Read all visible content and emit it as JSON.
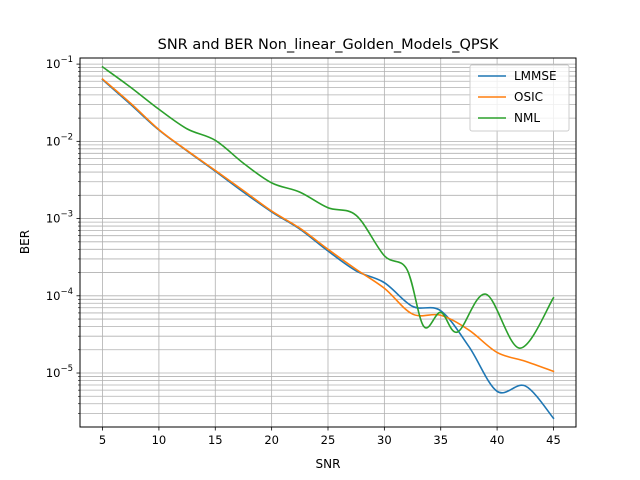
{
  "chart_data": {
    "type": "line",
    "title": "SNR and BER Non_linear_Golden_Models_QPSK",
    "xlabel": "SNR",
    "ylabel": "BER",
    "xlim": [
      3,
      47
    ],
    "ylim": [
      2e-06,
      0.12
    ],
    "yscale": "log",
    "grid": "both-major-minor",
    "legend_position": "top-right",
    "xticks": [
      5,
      10,
      15,
      20,
      25,
      30,
      35,
      40,
      45
    ],
    "yticks": [
      {
        "value": 1e-05,
        "base": "10",
        "exp": "−5"
      },
      {
        "value": 0.0001,
        "base": "10",
        "exp": "−4"
      },
      {
        "value": 0.001,
        "base": "10",
        "exp": "−3"
      },
      {
        "value": 0.01,
        "base": "10",
        "exp": "−2"
      },
      {
        "value": 0.1,
        "base": "10",
        "exp": "−1"
      }
    ],
    "series": [
      {
        "name": "LMMSE",
        "color": "#1f77b4",
        "x": [
          5,
          7.5,
          10,
          12.5,
          15,
          17.5,
          20,
          22.5,
          25,
          27.5,
          30,
          32.5,
          35,
          37.5,
          40,
          42.5,
          45
        ],
        "y": [
          0.063,
          0.03,
          0.014,
          0.0075,
          0.0041,
          0.0022,
          0.00122,
          0.00073,
          0.00038,
          0.00021,
          0.000148,
          7.3e-05,
          6.4e-05,
          2.2e-05,
          5.8e-06,
          6.8e-06,
          2.6e-06
        ]
      },
      {
        "name": "OSIC",
        "color": "#ff7f0e",
        "x": [
          5,
          7.5,
          10,
          12.5,
          15,
          17.5,
          20,
          22.5,
          25,
          27.5,
          30,
          32.5,
          35,
          37.5,
          40,
          42.5,
          45
        ],
        "y": [
          0.064,
          0.031,
          0.0142,
          0.0076,
          0.0042,
          0.0023,
          0.00125,
          0.00075,
          0.0004,
          0.00022,
          0.000125,
          5.8e-05,
          5.6e-05,
          3.6e-05,
          1.85e-05,
          1.42e-05,
          1.05e-05
        ]
      },
      {
        "name": "NML",
        "color": "#2ca02c",
        "x": [
          5,
          7.5,
          10,
          12.5,
          15,
          17.5,
          20,
          22.5,
          25,
          27.5,
          30,
          32,
          33.5,
          35,
          36.5,
          39,
          42,
          45
        ],
        "y": [
          0.092,
          0.05,
          0.026,
          0.0145,
          0.0103,
          0.0052,
          0.0029,
          0.0022,
          0.00138,
          0.0011,
          0.00033,
          0.00022,
          4e-05,
          6.1e-05,
          3.4e-05,
          0.000105,
          2.1e-05,
          9.4e-05
        ]
      }
    ]
  }
}
